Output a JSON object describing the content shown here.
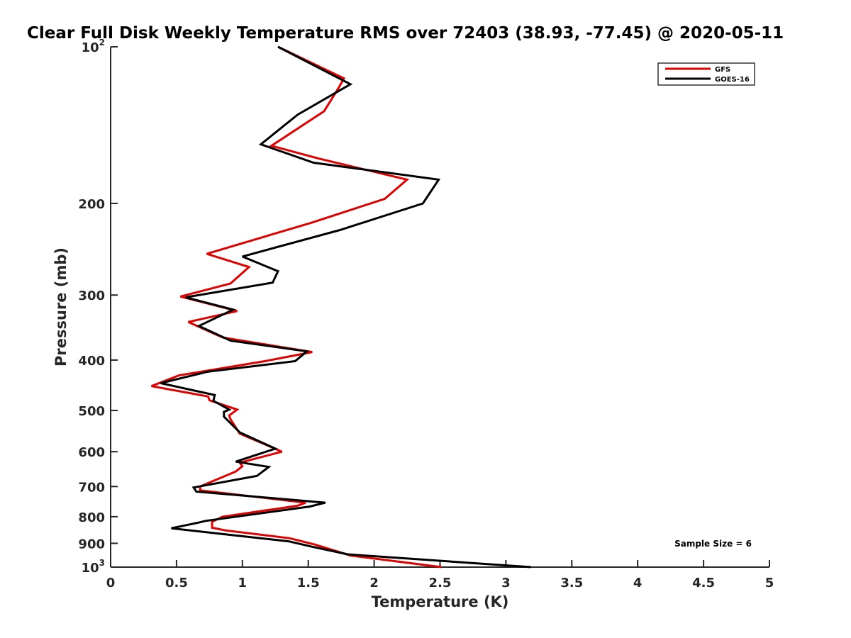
{
  "chart_data": {
    "type": "line",
    "title": "Clear Full Disk Weekly Temperature RMS over 72403 (38.93, -77.45) @ 2020-05-11",
    "xlabel": "Temperature (K)",
    "ylabel": "Pressure (mb)",
    "xlim": [
      0,
      5
    ],
    "ylim": [
      100,
      1000
    ],
    "y_scale": "log",
    "y_reversed": true,
    "grid": false,
    "legend_position": "top-right",
    "x_ticks": [
      "0",
      "0.5",
      "1",
      "1.5",
      "2",
      "2.5",
      "3",
      "3.5",
      "4",
      "4.5",
      "5"
    ],
    "x_tick_values": [
      0,
      0.5,
      1,
      1.5,
      2,
      2.5,
      3,
      3.5,
      4,
      4.5,
      5
    ],
    "y_ticks": [
      {
        "value": 100,
        "base": "10",
        "exp": "2"
      },
      {
        "value": 200,
        "label": "200"
      },
      {
        "value": 300,
        "label": "300"
      },
      {
        "value": 400,
        "label": "400"
      },
      {
        "value": 500,
        "label": "500"
      },
      {
        "value": 600,
        "label": "600"
      },
      {
        "value": 700,
        "label": "700"
      },
      {
        "value": 800,
        "label": "800"
      },
      {
        "value": 900,
        "label": "900"
      },
      {
        "value": 1000,
        "base": "10",
        "exp": "3"
      }
    ],
    "annotations": [
      {
        "text": "Sample Size = 6"
      }
    ],
    "series": [
      {
        "name": "GFS",
        "color": "#e00000",
        "points": [
          [
            1.27,
            100
          ],
          [
            1.77,
            115
          ],
          [
            1.73,
            120
          ],
          [
            1.62,
            133
          ],
          [
            1.22,
            155
          ],
          [
            1.58,
            164
          ],
          [
            2.25,
            180
          ],
          [
            2.08,
            196
          ],
          [
            1.52,
            218
          ],
          [
            0.73,
            250
          ],
          [
            1.05,
            265
          ],
          [
            0.91,
            285
          ],
          [
            0.53,
            302
          ],
          [
            0.96,
            322
          ],
          [
            0.59,
            338
          ],
          [
            0.85,
            362
          ],
          [
            1.53,
            386
          ],
          [
            1.17,
            402
          ],
          [
            0.52,
            428
          ],
          [
            0.31,
            449
          ],
          [
            0.74,
            470
          ],
          [
            0.75,
            478
          ],
          [
            0.96,
            498
          ],
          [
            0.9,
            511
          ],
          [
            0.91,
            520
          ],
          [
            0.98,
            554
          ],
          [
            1.2,
            585
          ],
          [
            1.3,
            600
          ],
          [
            0.98,
            630
          ],
          [
            1.0,
            640
          ],
          [
            0.95,
            655
          ],
          [
            0.68,
            700
          ],
          [
            0.68,
            712
          ],
          [
            1.48,
            752
          ],
          [
            1.42,
            762
          ],
          [
            0.85,
            800
          ],
          [
            0.77,
            818
          ],
          [
            0.77,
            840
          ],
          [
            0.87,
            850
          ],
          [
            1.36,
            880
          ],
          [
            1.55,
            905
          ],
          [
            1.82,
            950
          ],
          [
            2.51,
            1000
          ]
        ]
      },
      {
        "name": "GOES-16",
        "color": "#000000",
        "points": [
          [
            1.27,
            100
          ],
          [
            1.82,
            118
          ],
          [
            1.42,
            135
          ],
          [
            1.14,
            154
          ],
          [
            1.54,
            167
          ],
          [
            2.49,
            180
          ],
          [
            2.37,
            200
          ],
          [
            1.74,
            225
          ],
          [
            1.0,
            253
          ],
          [
            1.27,
            270
          ],
          [
            1.23,
            284
          ],
          [
            0.57,
            303
          ],
          [
            0.93,
            320
          ],
          [
            0.67,
            344
          ],
          [
            0.91,
            367
          ],
          [
            1.49,
            385
          ],
          [
            1.4,
            402
          ],
          [
            0.74,
            421
          ],
          [
            0.38,
            443
          ],
          [
            0.79,
            467
          ],
          [
            0.78,
            479
          ],
          [
            0.9,
            498
          ],
          [
            0.86,
            503
          ],
          [
            0.86,
            514
          ],
          [
            0.98,
            551
          ],
          [
            1.25,
            592
          ],
          [
            0.95,
            627
          ],
          [
            1.2,
            642
          ],
          [
            1.11,
            668
          ],
          [
            0.63,
            703
          ],
          [
            0.65,
            716
          ],
          [
            1.63,
            752
          ],
          [
            1.51,
            765
          ],
          [
            0.72,
            815
          ],
          [
            0.68,
            820
          ],
          [
            0.46,
            842
          ],
          [
            0.87,
            865
          ],
          [
            1.35,
            892
          ],
          [
            1.54,
            915
          ],
          [
            1.8,
            945
          ],
          [
            3.19,
            1000
          ]
        ]
      }
    ]
  }
}
